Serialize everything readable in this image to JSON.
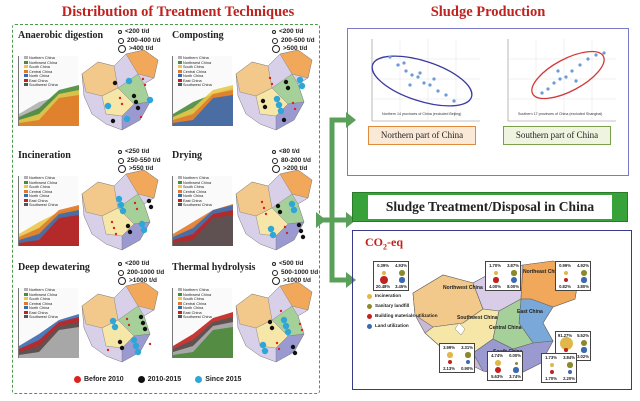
{
  "left": {
    "title": "Distribution of Treatment Techniques",
    "techniques": [
      {
        "name": "Anaerobic digestion",
        "legend": [
          "<200 t/d",
          "200-400 t/d",
          ">400 t/d"
        ]
      },
      {
        "name": "Composting",
        "legend": [
          "<200 t/d",
          "200-500 t/d",
          ">500 t/d"
        ]
      },
      {
        "name": "Incineration",
        "legend": [
          "<250 t/d",
          "250-550 t/d",
          ">550 t/d"
        ]
      },
      {
        "name": "Drying",
        "legend": [
          "<80 t/d",
          "80-200 t/d",
          ">200 t/d"
        ]
      },
      {
        "name": "Deep dewatering",
        "legend": [
          "<200 t/d",
          "200-1000 t/d",
          ">1000 t/d"
        ]
      },
      {
        "name": "Thermal hydrolysis",
        "legend": [
          "<500 t/d",
          "500-1000 t/d",
          ">1000 t/d"
        ]
      }
    ],
    "mini_legend": [
      "Northern China",
      "Northwest China",
      "South China",
      "Central China",
      "North China",
      "East China",
      "Southwest China"
    ],
    "year_legend": [
      "Before 2010",
      "2010-2015",
      "Since 2015"
    ]
  },
  "production": {
    "title": "Sludge Production",
    "north_label": "Northern part of China",
    "south_label": "Southern part of China",
    "north_note": "Northern 14 provinces of China (excluded Beijing)",
    "south_note": "Southern 17 provinces of China (excluded Shanghai)"
  },
  "banner": "Sludge Treatment/Disposal in China",
  "co2": {
    "title_main": "CO",
    "title_sub": "2",
    "title_end": "-eq",
    "legend": [
      {
        "label": "Incineration",
        "color": "#e0b84a"
      },
      {
        "label": "Sanitary landfill",
        "color": "#8a8a2a"
      },
      {
        "label": "Building materials utilization",
        "color": "#c0221e"
      },
      {
        "label": "Land utilization",
        "color": "#3a6ab0"
      }
    ],
    "regions": [
      "Northwest China",
      "North China",
      "Northeast China",
      "East China",
      "Southwest China",
      "Central China",
      "South China"
    ],
    "cards": [
      {
        "vals": [
          "0.39%",
          "4.93%",
          "20.48%",
          "3.45%"
        ]
      },
      {
        "vals": [
          "1.70%",
          "3.87%",
          "4.00%",
          "8.00%"
        ]
      },
      {
        "vals": [
          "0.99%",
          "4.92%",
          "0.82%",
          "3.80%"
        ]
      },
      {
        "vals": [
          "91.27%",
          "5.52%",
          "0.11%",
          "3.02%"
        ]
      },
      {
        "vals": [
          "3.99%",
          "3.31%",
          "2.13%",
          "0.90%"
        ]
      },
      {
        "vals": [
          "4.74%",
          "0.00%",
          "5.63%",
          "3.74%"
        ]
      },
      {
        "vals": [
          "1.73%",
          "3.84%",
          "1.70%",
          "2.20%"
        ]
      }
    ]
  }
}
